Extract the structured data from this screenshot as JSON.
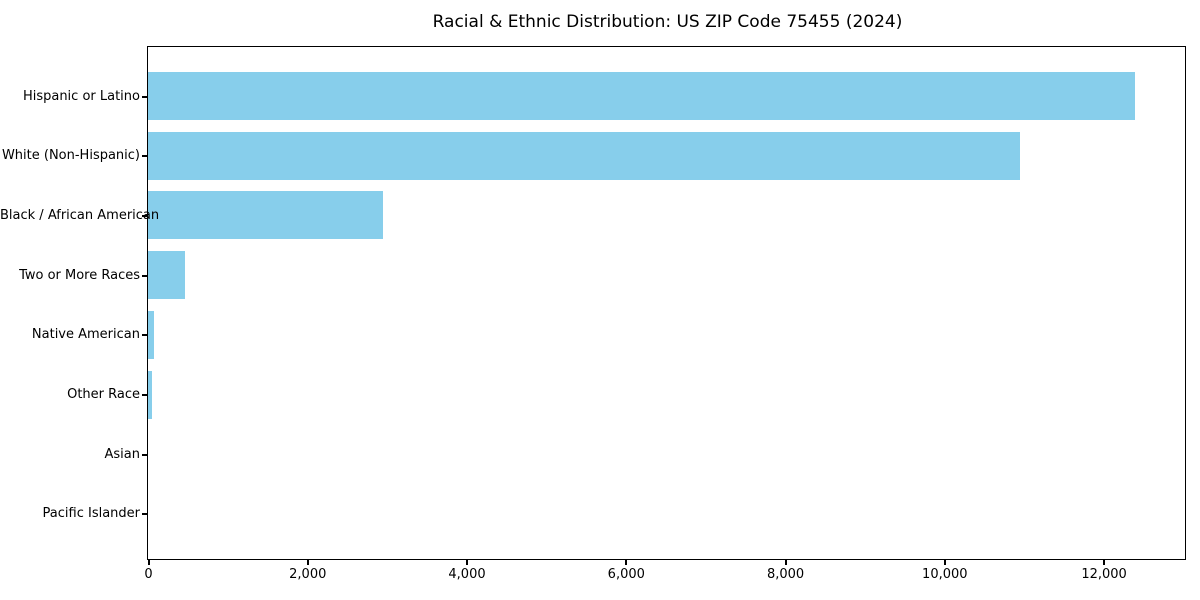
{
  "title": "Racial & Ethnic Distribution: US ZIP Code 75455 (2024)",
  "chart_data": {
    "type": "bar",
    "orientation": "horizontal",
    "title": "Racial & Ethnic Distribution: US ZIP Code 75455 (2024)",
    "xlabel": "",
    "ylabel": "",
    "categories": [
      "Hispanic or Latino",
      "White (Non-Hispanic)",
      "Black / African American",
      "Two or More Races",
      "Native American",
      "Other Race",
      "Asian",
      "Pacific Islander"
    ],
    "values": [
      12390,
      10950,
      2950,
      470,
      70,
      50,
      0,
      0
    ],
    "xlim": [
      0,
      13010
    ],
    "x_ticks": [
      0,
      2000,
      4000,
      6000,
      8000,
      10000,
      12000
    ],
    "x_tick_labels": [
      "0",
      "2,000",
      "4,000",
      "6,000",
      "8,000",
      "10,000",
      "12,000"
    ],
    "bar_color": "#87CEEB",
    "grid": false,
    "legend": false,
    "background_color": "#FFFFFF",
    "spine_color": "#000000",
    "text_color": "#000000"
  }
}
